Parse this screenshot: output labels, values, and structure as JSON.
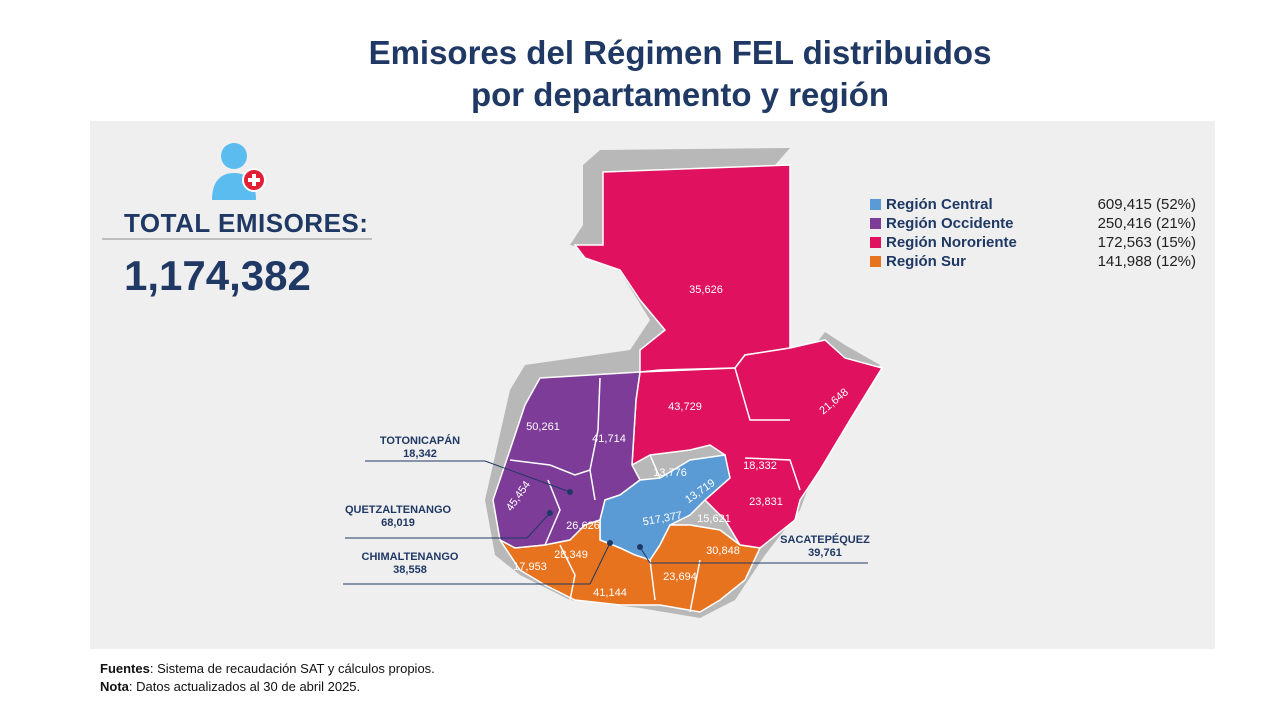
{
  "title_line1": "Emisores del Régimen FEL distribuidos",
  "title_line2": "por departamento y región",
  "total": {
    "label": "TOTAL EMISORES:",
    "value": "1,174,382",
    "icon": "user-add-icon"
  },
  "legend": [
    {
      "name": "Región Central",
      "value": "609,415 (52%)",
      "color": "#5b9bd5"
    },
    {
      "name": "Región Occidente",
      "value": "250,416 (21%)",
      "color": "#7d3c98"
    },
    {
      "name": "Región Nororiente",
      "value": "172,563 (15%)",
      "color": "#e0115f"
    },
    {
      "name": "Región Sur",
      "value": "141,988 (12%)",
      "color": "#e8731f"
    }
  ],
  "regions": {
    "nororiente": {
      "color": "#e0115f",
      "labels": [
        "35,626",
        "43,729",
        "21,648",
        "18,332",
        "13,776",
        "23,831",
        "15,621"
      ]
    },
    "occidente": {
      "color": "#7d3c98",
      "labels": [
        "50,261",
        "41,714",
        "45,454",
        "26,626"
      ]
    },
    "central": {
      "color": "#5b9bd5",
      "labels": [
        "13,719",
        "517,377"
      ]
    },
    "sur": {
      "color": "#e8731f",
      "labels": [
        "28,349",
        "17,953",
        "30,848",
        "23,694",
        "41,144"
      ]
    }
  },
  "callouts": {
    "totonicapan": {
      "name": "TOTONICAPÁN",
      "value": "18,342"
    },
    "quetzaltenango": {
      "name": "QUETZALTENANGO",
      "value": "68,019"
    },
    "chimaltenango": {
      "name": "CHIMALTENANGO",
      "value": "38,558"
    },
    "sacatepequez": {
      "name": "SACATEPÉQUEZ",
      "value": "39,761"
    }
  },
  "notes": {
    "fuentes_label": "Fuentes",
    "fuentes_text": ": Sistema de recaudación SAT y cálculos propios.",
    "nota_label": "Nota",
    "nota_text": ": Datos actualizados al  30 de abril 2025."
  }
}
